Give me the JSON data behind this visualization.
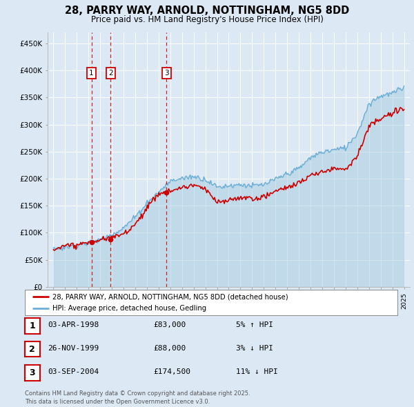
{
  "title": "28, PARRY WAY, ARNOLD, NOTTINGHAM, NG5 8DD",
  "subtitle": "Price paid vs. HM Land Registry's House Price Index (HPI)",
  "background_color": "#dce9f5",
  "legend_entries": [
    "28, PARRY WAY, ARNOLD, NOTTINGHAM, NG5 8DD (detached house)",
    "HPI: Average price, detached house, Gedling"
  ],
  "table_rows": [
    [
      "1",
      "03-APR-1998",
      "£83,000",
      "5% ↑ HPI"
    ],
    [
      "2",
      "26-NOV-1999",
      "£88,000",
      "3% ↓ HPI"
    ],
    [
      "3",
      "03-SEP-2004",
      "£174,500",
      "11% ↓ HPI"
    ]
  ],
  "footnote": "Contains HM Land Registry data © Crown copyright and database right 2025.\nThis data is licensed under the Open Government Licence v3.0.",
  "sale_years": [
    1998.25,
    1999.9,
    2004.67
  ],
  "sale_prices": [
    83000,
    88000,
    174500
  ],
  "sale_labels": [
    "1",
    "2",
    "3"
  ],
  "yticks": [
    0,
    50000,
    100000,
    150000,
    200000,
    250000,
    300000,
    350000,
    400000,
    450000
  ],
  "ytick_labels": [
    "£0",
    "£50K",
    "£100K",
    "£150K",
    "£200K",
    "£250K",
    "£300K",
    "£350K",
    "£400K",
    "£450K"
  ],
  "red_color": "#cc0000",
  "blue_color": "#6baed6",
  "blue_fill": "#a8cce0"
}
